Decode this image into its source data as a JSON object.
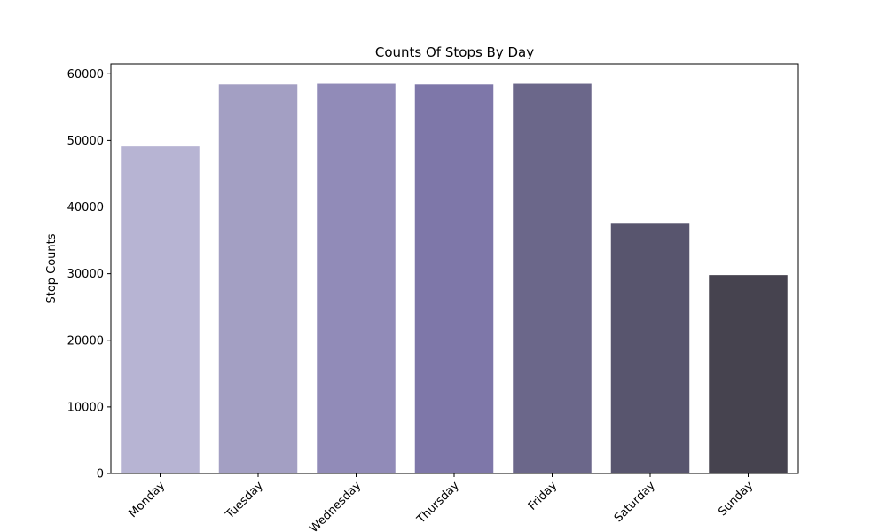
{
  "chart_data": {
    "type": "bar",
    "title": "Counts Of Stops By Day",
    "xlabel": "",
    "ylabel": "Stop Counts",
    "categories": [
      "Monday",
      "Tuesday",
      "Wednesday",
      "Thursday",
      "Friday",
      "Saturday",
      "Sunday"
    ],
    "values": [
      49100,
      58400,
      58500,
      58400,
      58500,
      37500,
      29800
    ],
    "colors": [
      "#b7b4d3",
      "#a39fc3",
      "#918bb8",
      "#7e77a9",
      "#6b678a",
      "#58556e",
      "#46434f"
    ],
    "ylim": [
      0,
      61500
    ],
    "yticks": [
      0,
      10000,
      20000,
      30000,
      40000,
      50000,
      60000
    ],
    "ytick_labels": [
      "0",
      "10000",
      "20000",
      "30000",
      "40000",
      "50000",
      "60000"
    ],
    "grid": false,
    "legend": "none"
  }
}
